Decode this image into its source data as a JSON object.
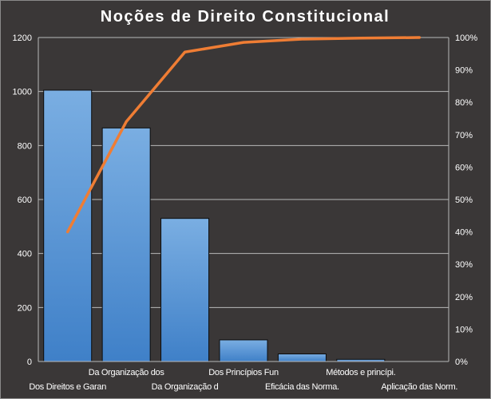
{
  "chart_data": {
    "type": "bar",
    "title": "Noções de Direito Constitucional",
    "categories": [
      "Dos Direitos e Garan",
      "Da Organização dos",
      "Da Organização d",
      "Dos Princípios Fun",
      "Eficácia das Norma.",
      "Métodos e princípi.",
      "Aplicação das Norm."
    ],
    "series": [
      {
        "type": "bar",
        "values": [
          1005,
          865,
          530,
          80,
          28,
          8,
          0
        ]
      },
      {
        "type": "line",
        "axis": "secondary",
        "values": [
          40,
          74,
          95.5,
          98.5,
          99.5,
          99.8,
          100
        ]
      }
    ],
    "y_axis": {
      "ylim": [
        0,
        1200
      ],
      "ticks": [
        "0",
        "200",
        "400",
        "600",
        "800",
        "1000",
        "1200"
      ]
    },
    "y2_axis": {
      "ylim": [
        0,
        100
      ],
      "ticks": [
        "0%",
        "10%",
        "20%",
        "30%",
        "40%",
        "50%",
        "60%",
        "70%",
        "80%",
        "90%",
        "100%"
      ]
    },
    "grid": true,
    "legend": "none",
    "colors": {
      "background": "#3a3737",
      "bar_top": "#7aaee2",
      "bar_bottom": "#3f80c8",
      "bar_stroke": "#0c0c0c",
      "line": "#ef7d34",
      "grid": "#b8b8b8",
      "text": "#ffffff"
    }
  }
}
